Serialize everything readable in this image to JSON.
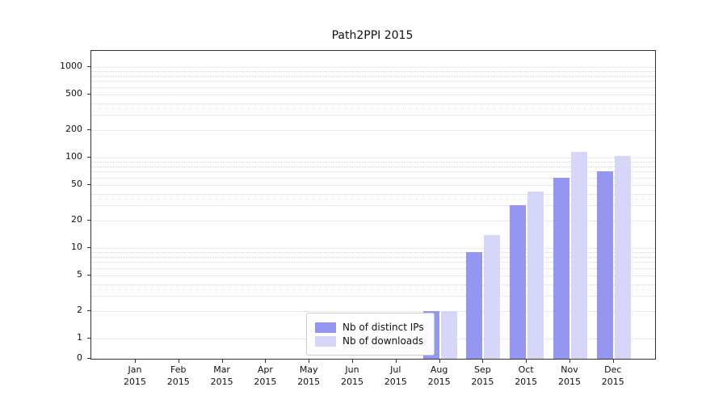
{
  "chart_data": {
    "type": "bar",
    "title": "Path2PPI 2015",
    "scale": "symlog",
    "grid": true,
    "legend_position": "lower center",
    "ylim": [
      0,
      1200
    ],
    "y_ticks": [
      0,
      1,
      2,
      5,
      10,
      20,
      50,
      100,
      200,
      500,
      1000
    ],
    "categories": [
      {
        "month": "Jan",
        "year": "2015"
      },
      {
        "month": "Feb",
        "year": "2015"
      },
      {
        "month": "Mar",
        "year": "2015"
      },
      {
        "month": "Apr",
        "year": "2015"
      },
      {
        "month": "May",
        "year": "2015"
      },
      {
        "month": "Jun",
        "year": "2015"
      },
      {
        "month": "Jul",
        "year": "2015"
      },
      {
        "month": "Aug",
        "year": "2015"
      },
      {
        "month": "Sep",
        "year": "2015"
      },
      {
        "month": "Oct",
        "year": "2015"
      },
      {
        "month": "Nov",
        "year": "2015"
      },
      {
        "month": "Dec",
        "year": "2015"
      }
    ],
    "series": [
      {
        "name": "Nb of distinct IPs",
        "color": "#9596ef",
        "values": [
          0,
          0,
          0,
          0,
          0,
          0,
          0,
          2,
          9,
          30,
          60,
          70
        ]
      },
      {
        "name": "Nb of downloads",
        "color": "#d6d6f8",
        "values": [
          0,
          0,
          0,
          0,
          0,
          0,
          0,
          2,
          14,
          42,
          115,
          105
        ]
      }
    ]
  }
}
